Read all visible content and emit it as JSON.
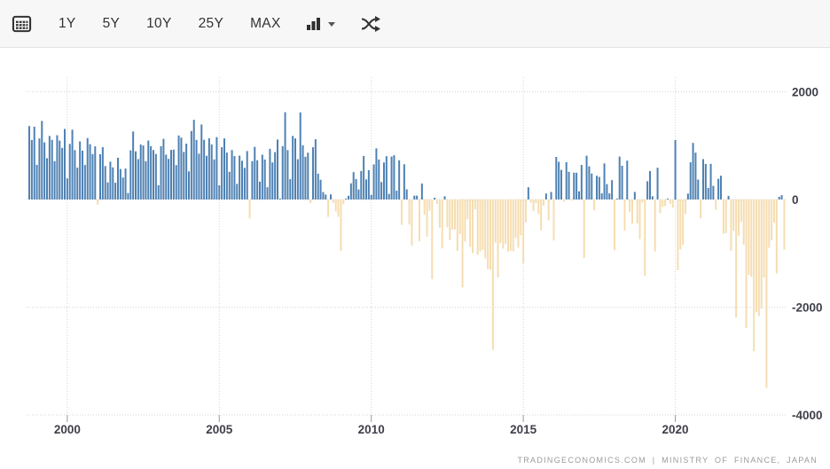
{
  "toolbar": {
    "ranges": [
      "1Y",
      "5Y",
      "10Y",
      "25Y",
      "MAX"
    ],
    "calendar_icon": "calendar-icon",
    "chart_type_icon": "bar-chart-type-icon",
    "compare_icon": "compare-shuffle-icon"
  },
  "attribution": "TRADINGECONOMICS.COM | MINISTRY OF FINANCE, JAPAN",
  "colors": {
    "positive_bar": "#4e81b3",
    "negative_bar": "#f5ddb1",
    "grid": "#d6d6d6",
    "axis_text": "#3f3f4b",
    "toolbar_bg": "#f7f7f7",
    "toolbar_text": "#333333",
    "attribution_text": "#9b9b9b"
  },
  "chart_data": {
    "type": "bar",
    "title": "",
    "frequency": "monthly",
    "series_start_year": 1998,
    "series_start_month": 10,
    "x_ticks": [
      2000,
      2005,
      2010,
      2015,
      2020
    ],
    "y_ticks": [
      2000,
      0,
      -2000,
      -4000
    ],
    "ylim": [
      -4200,
      2100
    ],
    "grid": true,
    "legend": "none",
    "source": "TRADINGECONOMICS.COM | MINISTRY OF FINANCE, JAPAN",
    "values": [
      1363,
      1103,
      1351,
      643,
      1133,
      1458,
      1061,
      766,
      1180,
      1107,
      711,
      1193,
      1093,
      958,
      1310,
      392,
      1032,
      1296,
      916,
      591,
      1078,
      907,
      641,
      1140,
      1027,
      843,
      986,
      -95,
      841,
      971,
      621,
      316,
      702,
      596,
      311,
      775,
      565,
      407,
      574,
      120,
      912,
      1262,
      894,
      750,
      1021,
      1003,
      712,
      1094,
      990,
      918,
      845,
      264,
      990,
      1125,
      832,
      754,
      920,
      926,
      639,
      1189,
      1148,
      883,
      1037,
      522,
      1271,
      1478,
      1106,
      850,
      1392,
      1108,
      810,
      1137,
      1021,
      744,
      1158,
      263,
      971,
      1134,
      871,
      513,
      918,
      806,
      290,
      815,
      718,
      587,
      899,
      -351,
      711,
      977,
      728,
      331,
      831,
      742,
      227,
      940,
      688,
      880,
      1113,
      13,
      988,
      1620,
      917,
      378,
      1180,
      1134,
      747,
      1617,
      1005,
      793,
      869,
      -69,
      970,
      1119,
      480,
      366,
      138,
      91,
      -324,
      95,
      -64,
      -223,
      -321,
      -953,
      -90,
      11,
      69,
      299,
      508,
      380,
      186,
      529,
      807,
      373,
      545,
      85,
      651,
      949,
      742,
      324,
      687,
      804,
      103,
      797,
      821,
      163,
      727,
      -471,
      654,
      189,
      -464,
      -857,
      71,
      72,
      -777,
      296,
      -280,
      -689,
      -205,
      -1480,
      33,
      -84,
      -522,
      -909,
      60,
      -518,
      -756,
      -559,
      -556,
      -954,
      -643,
      -1633,
      -779,
      -365,
      -882,
      -994,
      -182,
      -1027,
      -963,
      -934,
      -1095,
      -1294,
      -1304,
      -2790,
      -802,
      -1448,
      -811,
      -911,
      -824,
      -968,
      -951,
      -961,
      -711,
      -895,
      -664,
      -1180,
      -425,
      227,
      -56,
      -217,
      -69,
      -268,
      -570,
      -115,
      111,
      -387,
      140,
      -760,
      790,
      700,
      550,
      -41,
      693,
      514,
      -19,
      498,
      496,
      152,
      641,
      -1088,
      813,
      615,
      482,
      -204,
      440,
      419,
      113,
      670,
      285,
      113,
      359,
      -943,
      3,
      797,
      626,
      -578,
      721,
      -231,
      -445,
      140,
      -450,
      -737,
      -55,
      -1415,
      339,
      529,
      60,
      -968,
      589,
      -251,
      -136,
      -123,
      17,
      -82,
      -153,
      1103,
      -1310,
      -930,
      -840,
      -270,
      110,
      690,
      1050,
      870,
      370,
      -350,
      750,
      660,
      215,
      662,
      253,
      -189,
      384,
      440,
      -637,
      -623,
      67,
      -955,
      -583,
      -2191,
      -669,
      -414,
      -839,
      -2385,
      -1398,
      -1437,
      -2817,
      -2094,
      -2166,
      -2028,
      -1448,
      -3497,
      -898,
      -755,
      -432,
      -1373,
      50,
      80,
      -930
    ]
  }
}
